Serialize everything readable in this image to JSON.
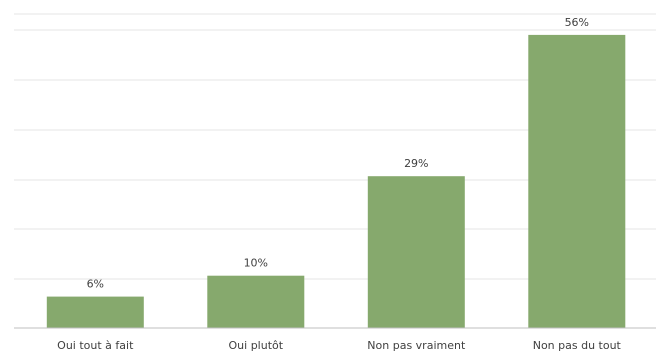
{
  "chart_data": {
    "type": "bar",
    "categories": [
      "Oui tout à fait",
      "Oui plutôt",
      "Non pas vraiment",
      "Non pas du tout"
    ],
    "values": [
      6,
      10,
      29,
      56
    ],
    "data_labels": [
      "6%",
      "10%",
      "29%",
      "56%"
    ],
    "ylim": [
      0,
      60
    ],
    "grid": true,
    "legend": "none",
    "bar_color": "#86a96d"
  }
}
